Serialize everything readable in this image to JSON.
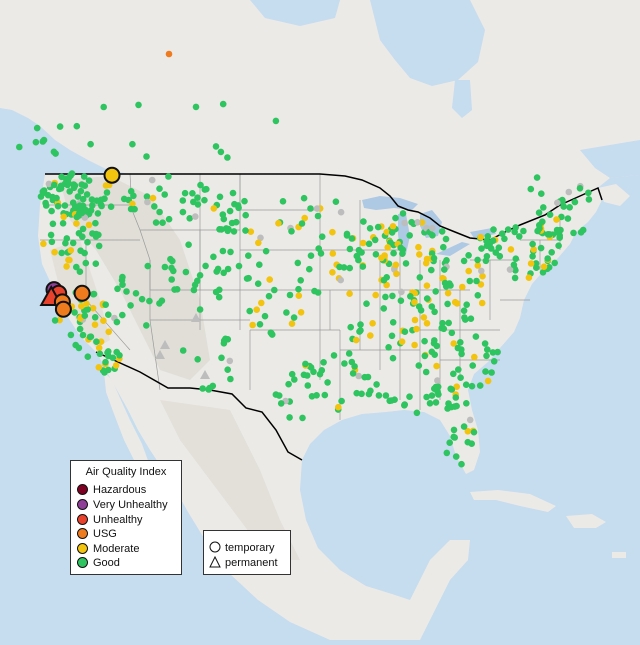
{
  "colors": {
    "ocean": "#c6dcef",
    "land": "#eceae6",
    "terrain": "#dcd8d0",
    "water_body": "#aec9e3",
    "state_border": "#9a9a9a",
    "country_border": "#000000",
    "hazardous": "#7e0023",
    "very_unhealthy": "#8f3f97",
    "unhealthy": "#e8412c",
    "usg": "#ee7b1e",
    "moderate": "#f2c40f",
    "good": "#2ec45f",
    "no_data": "#bdbdbd"
  },
  "legend": {
    "title": "Air Quality Index",
    "items": [
      {
        "label": "Hazardous",
        "color": "#7e0023"
      },
      {
        "label": "Very Unhealthy",
        "color": "#8f3f97"
      },
      {
        "label": "Unhealthy",
        "color": "#e8412c"
      },
      {
        "label": "USG",
        "color": "#ee7b1e"
      },
      {
        "label": "Moderate",
        "color": "#f2c40f"
      },
      {
        "label": "Good",
        "color": "#2ec45f"
      }
    ]
  },
  "shape_legend": {
    "temporary": "temporary",
    "permanent": "permanent"
  },
  "monitors": {
    "large": [
      {
        "lon": -123.0,
        "lat": 39.6,
        "aqi": "very_unhealthy",
        "type": "temporary"
      },
      {
        "lon": -122.5,
        "lat": 39.3,
        "aqi": "unhealthy",
        "type": "temporary"
      },
      {
        "lon": -123.3,
        "lat": 39.0,
        "aqi": "unhealthy",
        "type": "permanent"
      },
      {
        "lon": -120.0,
        "lat": 39.3,
        "aqi": "usg",
        "type": "temporary"
      },
      {
        "lon": -122.1,
        "lat": 38.6,
        "aqi": "usg",
        "type": "temporary"
      },
      {
        "lon": -122.0,
        "lat": 38.0,
        "aqi": "usg",
        "type": "temporary"
      },
      {
        "lon": -116.8,
        "lat": 48.9,
        "aqi": "moderate",
        "type": "temporary"
      }
    ]
  }
}
